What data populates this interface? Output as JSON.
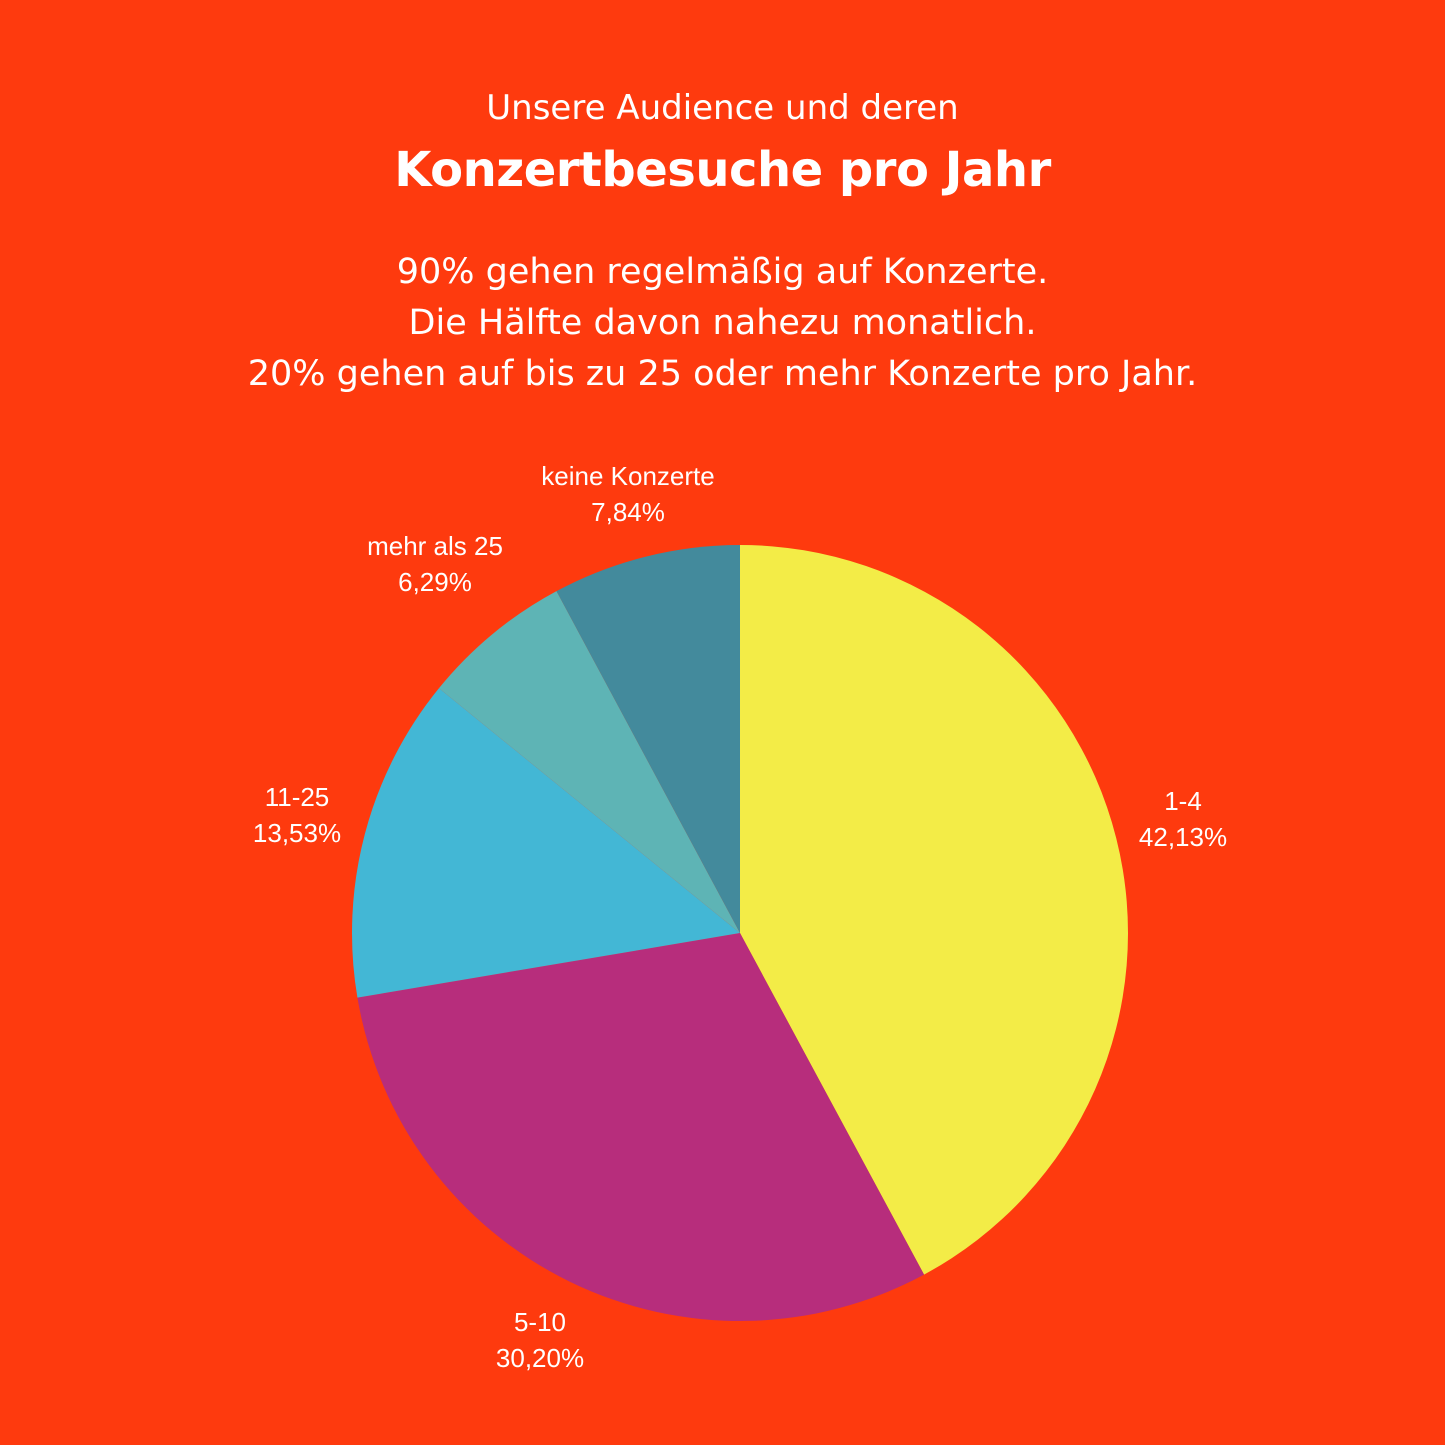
{
  "header": {
    "pretitle": "Unsere Audience und deren",
    "title": "Konzertbesuche pro Jahr",
    "summary": [
      "90% gehen regelmäßig auf Konzerte.",
      "Die Hälfte davon nahezu monatlich.",
      "20% gehen auf bis zu 25 oder mehr Konzerte pro Jahr."
    ]
  },
  "chart_data": {
    "type": "pie",
    "title": "Konzertbesuche pro Jahr",
    "start": "top",
    "direction": "clockwise",
    "slices": [
      {
        "label": "1-4",
        "value": 42.13,
        "value_label": "42,13%",
        "color": "#F3EC47"
      },
      {
        "label": "5-10",
        "value": 30.2,
        "value_label": "30,20%",
        "color": "#B72D7C"
      },
      {
        "label": "11-25",
        "value": 13.53,
        "value_label": "13,53%",
        "color": "#43B7D5"
      },
      {
        "label": "mehr als 25",
        "value": 6.29,
        "value_label": "6,29%",
        "color": "#5EB4B5"
      },
      {
        "label": "keine Konzerte",
        "value": 7.84,
        "value_label": "7,84%",
        "color": "#438A9C"
      }
    ]
  }
}
